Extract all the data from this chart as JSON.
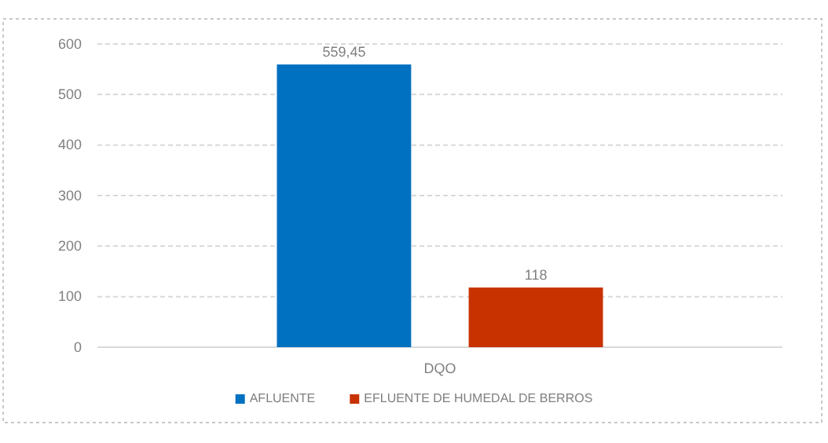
{
  "chart_data": {
    "type": "bar",
    "categories": [
      "DQO"
    ],
    "series": [
      {
        "name": "AFLUENTE",
        "color": "#0070c0",
        "values": [
          559.45
        ],
        "value_labels": [
          "559,45"
        ]
      },
      {
        "name": "EFLUENTE DE HUMEDAL DE BERROS",
        "color": "#c83200",
        "values": [
          118
        ],
        "value_labels": [
          "118"
        ]
      }
    ],
    "ylim": [
      0,
      600
    ],
    "yticks": [
      0,
      100,
      200,
      300,
      400,
      500,
      600
    ],
    "grid": "y",
    "legend": "bottom"
  }
}
